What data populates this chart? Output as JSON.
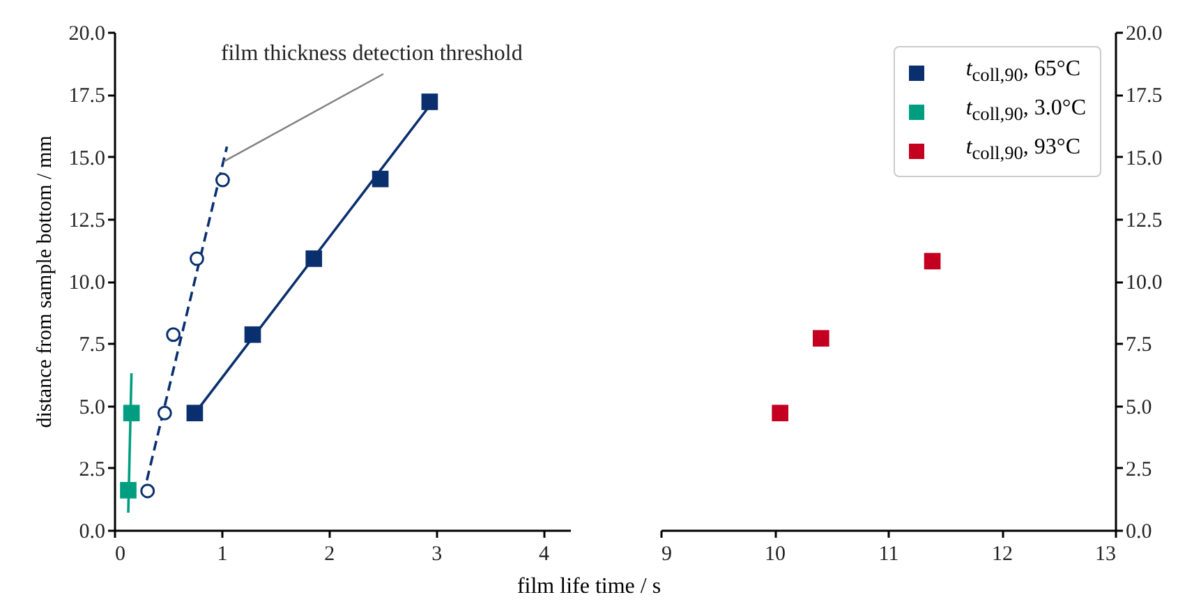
{
  "chart_data": [
    {
      "type": "scatter",
      "legend": "top right",
      "ylabel": "distance from sample bottom / mm",
      "xlabel": "film life time / s",
      "xlim": [
        0,
        4.25
      ],
      "xticks": [
        0,
        1,
        2,
        3,
        4
      ],
      "ylim": [
        0,
        20
      ],
      "yticks": [
        {
          "value": 0,
          "label": "0.0"
        },
        {
          "value": 2.5,
          "label": "2.5"
        },
        {
          "value": 5,
          "label": "5.0"
        },
        {
          "value": 7.5,
          "label": "7.5"
        },
        {
          "value": 10,
          "label": "10.0"
        },
        {
          "value": 12.5,
          "label": "12.5"
        },
        {
          "value": 15,
          "label": "15.0"
        },
        {
          "value": 17.5,
          "label": "17.5"
        },
        {
          "value": 20,
          "label": "20.0"
        }
      ],
      "grid": false,
      "annotations": [
        {
          "text": "film thickness detection threshold",
          "x": 1.02,
          "y": 14.8
        }
      ],
      "series": [
        {
          "type": "line",
          "color": "#0a2f6e",
          "marker": "none",
          "line_style": "solid",
          "x": [
            0.7,
            2.95
          ],
          "values": [
            4.4,
            17.1
          ]
        },
        {
          "type": "line",
          "color": "#0a2f6e",
          "marker": "none",
          "line_style": "dashed",
          "x": [
            0.27,
            1.05
          ],
          "values": [
            1.4,
            15.4
          ]
        },
        {
          "type": "line",
          "color": "#009e80",
          "marker": "none",
          "line_style": "solid",
          "x": [
            0.13,
            0.16
          ],
          "values": [
            0.7,
            6.3
          ]
        },
        {
          "name": "t$_{coll,90}$,  65°C",
          "color": "#0a2f6e",
          "marker": "square",
          "x": [
            0.75,
            1.29,
            1.86,
            2.48,
            2.94
          ],
          "values": [
            4.7,
            7.85,
            10.9,
            14.1,
            17.2
          ]
        },
        {
          "color": "#0a2f6e",
          "marker": "circle",
          "x": [
            0.31,
            0.47,
            0.55,
            0.77,
            1.01
          ],
          "values": [
            1.57,
            4.7,
            7.85,
            10.9,
            14.06
          ]
        },
        {
          "name": "t$_{coll,90}$,  3.0°C",
          "color": "#009e80",
          "marker": "square",
          "x": [
            0.13,
            0.16
          ],
          "values": [
            1.6,
            4.7
          ]
        }
      ]
    },
    {
      "type": "scatter",
      "legend": "top right",
      "xlim": [
        9,
        13
      ],
      "xticks": [
        9,
        10,
        11,
        12,
        13
      ],
      "ylim": [
        0,
        20
      ],
      "yticks": [
        {
          "value": 0,
          "label": "0.0"
        },
        {
          "value": 2.5,
          "label": "2.5"
        },
        {
          "value": 5,
          "label": "5.0"
        },
        {
          "value": 7.5,
          "label": "7.5"
        },
        {
          "value": 10,
          "label": "10.0"
        },
        {
          "value": 12.5,
          "label": "12.5"
        },
        {
          "value": 15,
          "label": "15.0"
        },
        {
          "value": 17.5,
          "label": "17.5"
        },
        {
          "value": 20,
          "label": "20.0"
        }
      ],
      "grid": false,
      "series": [
        {
          "name": "t$_{coll,90}$,  93°C",
          "color": "#c30020",
          "marker": "square",
          "x": [
            10.05,
            10.41,
            11.39
          ],
          "values": [
            4.7,
            7.7,
            10.8
          ]
        }
      ]
    }
  ]
}
